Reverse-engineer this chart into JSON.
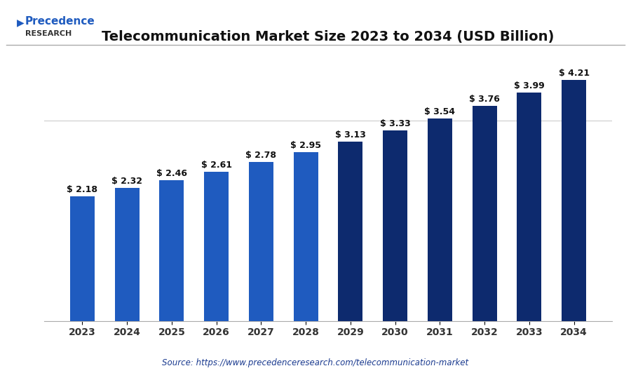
{
  "title": "Telecommunication Market Size 2023 to 2034 (USD Billion)",
  "source_text": "Source: https://www.precedenceresearch.com/telecommunication-market",
  "years": [
    2023,
    2024,
    2025,
    2026,
    2027,
    2028,
    2029,
    2030,
    2031,
    2032,
    2033,
    2034
  ],
  "values": [
    2.18,
    2.32,
    2.46,
    2.61,
    2.78,
    2.95,
    3.13,
    3.33,
    3.54,
    3.76,
    3.99,
    4.21
  ],
  "labels": [
    "$ 2.18",
    "$ 2.32",
    "$ 2.46",
    "$ 2.61",
    "$ 2.78",
    "$ 2.95",
    "$ 3.13",
    "$ 3.33",
    "$ 3.54",
    "$ 3.76",
    "$ 3.99",
    "$ 4.21"
  ],
  "bar_colors": [
    "#1f5bbf",
    "#1f5bbf",
    "#1f5bbf",
    "#1f5bbf",
    "#1f5bbf",
    "#1f5bbf",
    "#0d2a6e",
    "#0d2a6e",
    "#0d2a6e",
    "#0d2a6e",
    "#0d2a6e",
    "#0d2a6e"
  ],
  "background_color": "#ffffff",
  "title_fontsize": 14,
  "label_fontsize": 9,
  "tick_fontsize": 10,
  "ylim": [
    0,
    4.7
  ],
  "grid_color": "#cccccc",
  "logo_text_top": "Precedence",
  "logo_text_bottom": "RESEARCH",
  "logo_color": "#1f5bbf",
  "logo_arrow": "▶"
}
